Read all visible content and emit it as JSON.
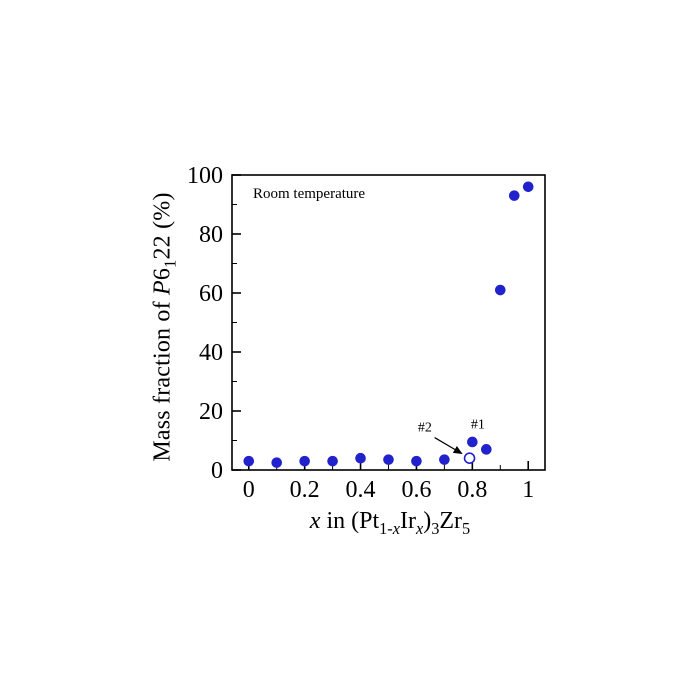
{
  "page": {
    "background": "#ffffff"
  },
  "plot": {
    "note": "Room temperature"
  },
  "chart_data": {
    "type": "scatter",
    "title": "",
    "xlabel": "x in (Pt1-xIrx)3Zr5",
    "ylabel": "Mass fraction of P6122 (%)",
    "xlabel_rich": [
      {
        "t": "x",
        "i": 1
      },
      {
        "t": " in  (Pt"
      },
      {
        "t": "1-",
        "sub": 1
      },
      {
        "t": "x",
        "sub": 1,
        "i": 1
      },
      {
        "t": "Ir"
      },
      {
        "t": "x",
        "sub": 1,
        "i": 1
      },
      {
        "t": ")"
      },
      {
        "t": "3",
        "sub": 1
      },
      {
        "t": "Zr"
      },
      {
        "t": "5",
        "sub": 1
      }
    ],
    "ylabel_rich": [
      {
        "t": "Mass fraction of "
      },
      {
        "t": "P",
        "i": 1
      },
      {
        "t": "6"
      },
      {
        "t": "1",
        "sub": 1
      },
      {
        "t": "22 (%)"
      }
    ],
    "xlim": [
      -0.06,
      1.06
    ],
    "ylim": [
      0,
      100
    ],
    "xticks": [
      0,
      0.2,
      0.4,
      0.6,
      0.8,
      1
    ],
    "xtick_labels": [
      "0",
      "0.2",
      "0.4",
      "0.6",
      "0.8",
      "1"
    ],
    "x_minor_step": 0.1,
    "yticks": [
      0,
      20,
      40,
      60,
      80,
      100
    ],
    "ytick_labels": [
      "0",
      "20",
      "40",
      "60",
      "80",
      "100"
    ],
    "y_minor_step": 10,
    "grid": false,
    "legend": "none",
    "marker_color": "#2222cc",
    "frame_color": "#000000",
    "annotation_note": "Room temperature",
    "series": [
      {
        "name": "P6122 mass fraction (filled circles)",
        "marker": "filled-circle",
        "points": [
          [
            0,
            3
          ],
          [
            0.1,
            2.5
          ],
          [
            0.2,
            3
          ],
          [
            0.3,
            3
          ],
          [
            0.4,
            4
          ],
          [
            0.5,
            3.5
          ],
          [
            0.6,
            3
          ],
          [
            0.7,
            3.5
          ],
          [
            0.8,
            9.5
          ],
          [
            0.85,
            7
          ],
          [
            0.9,
            61
          ],
          [
            0.95,
            93
          ],
          [
            1,
            96
          ]
        ]
      },
      {
        "name": "sample #2 (open circle)",
        "marker": "open-circle",
        "points": [
          [
            0.79,
            4
          ]
        ]
      }
    ],
    "annotations": [
      {
        "label": "#1",
        "x": 0.82,
        "y": 14
      },
      {
        "label": "#2",
        "x": 0.63,
        "y": 13,
        "arrow": {
          "x1": 0.665,
          "y1": 11,
          "x2": 0.762,
          "y2": 5.6
        }
      }
    ]
  }
}
